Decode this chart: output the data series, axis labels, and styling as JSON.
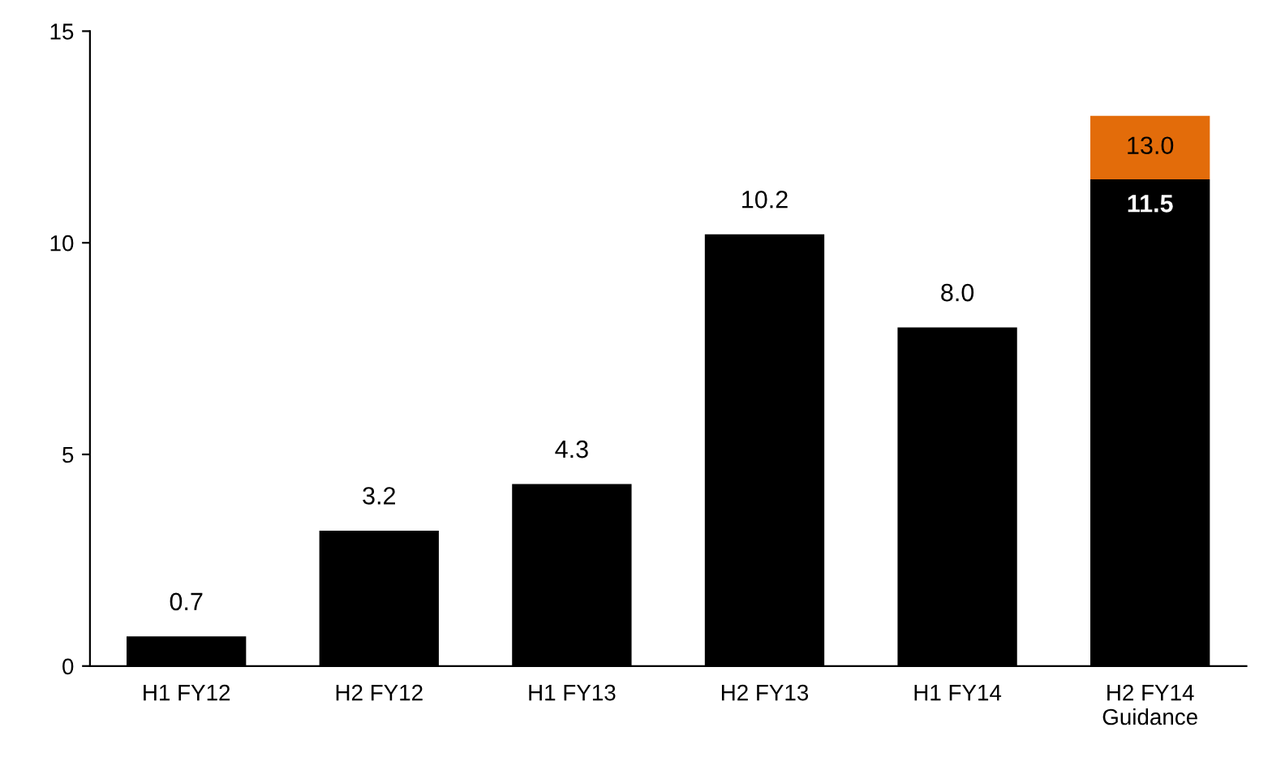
{
  "chart_data": {
    "type": "bar",
    "stacked": true,
    "categories": [
      "H1 FY12",
      "H2 FY12",
      "H1 FY13",
      "H2 FY13",
      "H1 FY14",
      "H2 FY14\nGuidance"
    ],
    "series": [
      {
        "color": "#000000",
        "values": [
          0.7,
          3.2,
          4.3,
          10.2,
          8.0,
          11.5
        ],
        "value_labels": [
          "0.7",
          "3.2",
          "4.3",
          "10.2",
          "8.0",
          "11.5"
        ]
      },
      {
        "color": "#e36c0a",
        "values": [
          null,
          null,
          null,
          null,
          null,
          1.5
        ],
        "value_labels": [
          null,
          null,
          null,
          null,
          null,
          null
        ]
      }
    ],
    "totals": [
      null,
      null,
      null,
      null,
      null,
      "13.0"
    ],
    "ylim": [
      0,
      15
    ],
    "yticks": [
      0,
      5,
      10,
      15
    ],
    "grid": false,
    "legend": false
  }
}
